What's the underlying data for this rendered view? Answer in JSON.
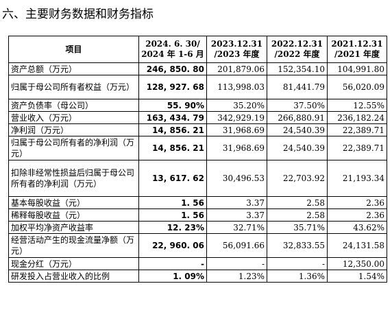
{
  "heading": "六、主要财务数据和财务指标",
  "table": {
    "headers": [
      [
        "项目"
      ],
      [
        "2024. 6. 30/",
        "2024 年 1-6 月"
      ],
      [
        "2023.12.31",
        "/2023 年度"
      ],
      [
        "2022.12.31",
        "/2022 年度"
      ],
      [
        "2021.12.31",
        "/2021 年度"
      ]
    ],
    "rows": [
      {
        "label": "资产总额（万元）",
        "values": [
          "246, 850. 80",
          "201,879.06",
          "152,354.10",
          "104,991.80"
        ],
        "h": 1
      },
      {
        "label": "归属于母公司所有者权益（万元）",
        "values": [
          "128, 927. 68",
          "113,998.03",
          "81,441.79",
          "56,020.09"
        ],
        "h": 2
      },
      {
        "label": "资产负债率（母公司）",
        "values": [
          "55. 90%",
          "35.20%",
          "37.50%",
          "12.55%"
        ],
        "h": 1
      },
      {
        "label": "营业收入（万元）",
        "values": [
          "163, 434. 79",
          "342,929.19",
          "266,880.91",
          "236,182.24"
        ],
        "h": 1
      },
      {
        "label": "净利润（万元）",
        "values": [
          "14, 856. 21",
          "31,968.69",
          "24,540.39",
          "22,389.71"
        ],
        "h": 1
      },
      {
        "label": "归属于母公司所有者的净利润（万元）",
        "values": [
          "14, 856. 21",
          "31,968.69",
          "24,540.39",
          "22,389.71"
        ],
        "h": 2
      },
      {
        "label": "扣除非经常性损益后归属于母公司所有者的净利润（万元）",
        "values": [
          "13, 617. 62",
          "30,496.53",
          "22,703.92",
          "21,193.34"
        ],
        "h": 3
      },
      {
        "label": "基本每股收益（元）",
        "values": [
          "1. 56",
          "3.37",
          "2.58",
          "2.36"
        ],
        "h": 1
      },
      {
        "label": "稀释每股收益（元）",
        "values": [
          "1. 56",
          "3.37",
          "2.58",
          "2.36"
        ],
        "h": 1
      },
      {
        "label": "加权平均净资产收益率",
        "values": [
          "12. 23%",
          "32.71%",
          "35.71%",
          "43.62%"
        ],
        "h": 1
      },
      {
        "label": "经营活动产生的现金流量净额（万元）",
        "values": [
          "22, 960. 06",
          "56,091.66",
          "32,833.55",
          "24,131.58"
        ],
        "h": 2
      },
      {
        "label": "现金分红（万元）",
        "values": [
          "-",
          "-",
          "-",
          "12,350.00"
        ],
        "h": 1
      },
      {
        "label": "研发投入占营业收入的比例",
        "values": [
          "1. 09%",
          "1.23%",
          "1.36%",
          "1.54%"
        ],
        "h": 1
      }
    ]
  }
}
